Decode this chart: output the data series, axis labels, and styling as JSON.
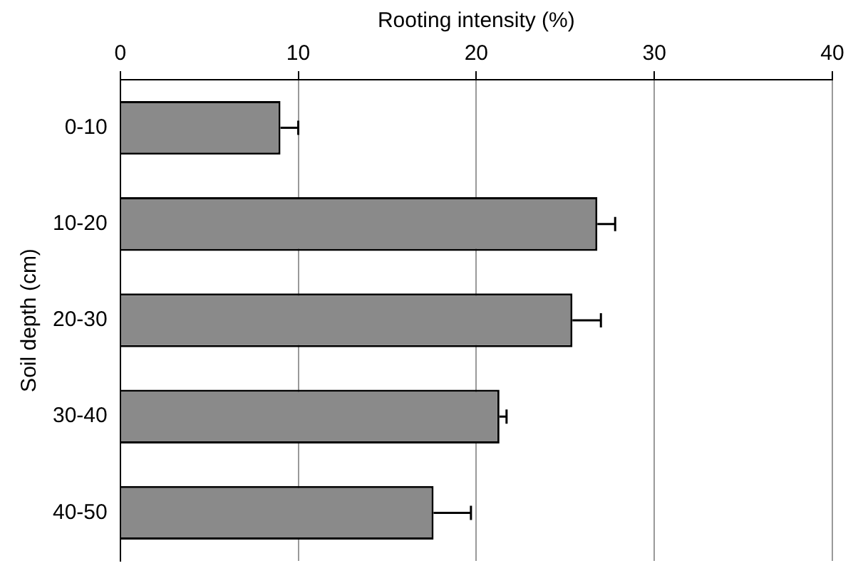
{
  "chart_data": {
    "type": "bar",
    "orientation": "horizontal",
    "xlabel": "Rooting intensity (%)",
    "ylabel": "Soil depth (cm)",
    "categories": [
      "0-10",
      "10-20",
      "20-30",
      "30-40",
      "40-50"
    ],
    "values": [
      9.0,
      26.8,
      25.4,
      21.3,
      17.6
    ],
    "errors": [
      [
        9.0,
        10.0
      ],
      [
        26.8,
        27.8
      ],
      [
        25.4,
        27.0
      ],
      [
        21.3,
        21.7
      ],
      [
        17.6,
        19.7
      ]
    ],
    "color": "#8a8a8a",
    "xlim": [
      0,
      40
    ],
    "xticks": [
      0,
      10,
      20,
      30,
      40
    ],
    "grid": "x",
    "legend": false
  }
}
